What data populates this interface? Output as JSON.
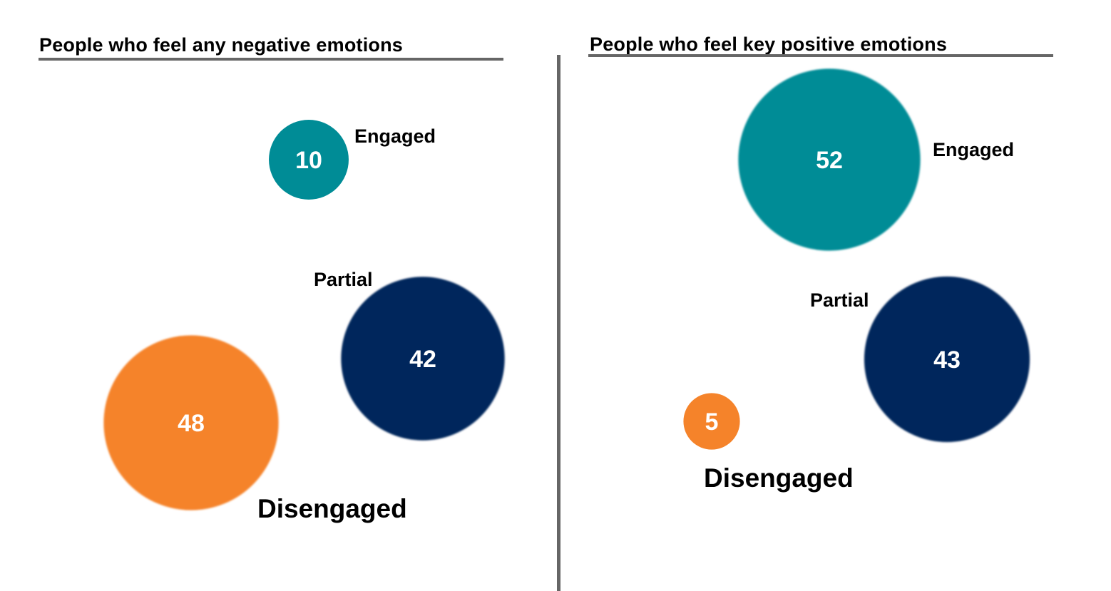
{
  "chart_data": [
    {
      "type": "bubble",
      "title": "People who feel any negative emotions",
      "series": [
        {
          "name": "Engaged",
          "value": 10,
          "color": "#008C96"
        },
        {
          "name": "Partial",
          "value": 42,
          "color": "#03265C"
        },
        {
          "name": "Disengaged",
          "value": 48,
          "color": "#F5832A"
        }
      ],
      "xlabel": "",
      "ylabel": "",
      "grid": false
    },
    {
      "type": "bubble",
      "title": "People who feel key positive emotions",
      "series": [
        {
          "name": "Engaged",
          "value": 52,
          "color": "#008C96"
        },
        {
          "name": "Partial",
          "value": 43,
          "color": "#03265C"
        },
        {
          "name": "Disengaged",
          "value": 5,
          "color": "#F5832A"
        }
      ],
      "xlabel": "",
      "ylabel": "",
      "grid": false
    }
  ],
  "colors": {
    "engaged": "#008C96",
    "partial": "#03265C",
    "disengaged": "#F5832A",
    "rule": "#666666"
  }
}
